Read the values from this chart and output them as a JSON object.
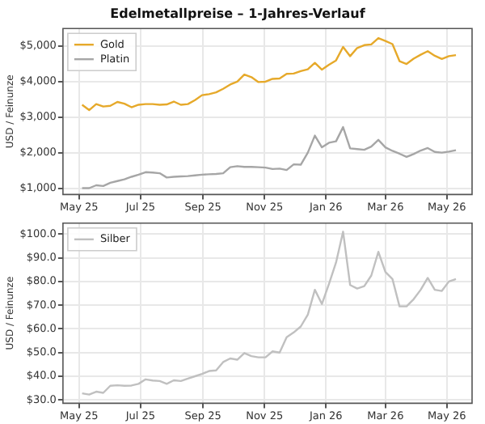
{
  "chart_data": [
    {
      "type": "line",
      "title": "Edelmetallpreise – 1-Jahres-Verlauf",
      "ylabel": "USD / Feinunze",
      "legend": "top left",
      "grid": true,
      "marker": "none",
      "line_style": "solid",
      "x": [
        "2025-05-04",
        "2025-05-11",
        "2025-05-18",
        "2025-05-25",
        "2025-06-01",
        "2025-06-08",
        "2025-06-15",
        "2025-06-22",
        "2025-06-29",
        "2025-07-06",
        "2025-07-13",
        "2025-07-20",
        "2025-07-27",
        "2025-08-03",
        "2025-08-10",
        "2025-08-17",
        "2025-08-24",
        "2025-08-31",
        "2025-09-07",
        "2025-09-14",
        "2025-09-21",
        "2025-09-28",
        "2025-10-05",
        "2025-10-12",
        "2025-10-19",
        "2025-10-26",
        "2025-11-02",
        "2025-11-09",
        "2025-11-16",
        "2025-11-23",
        "2025-11-30",
        "2025-12-07",
        "2025-12-14",
        "2025-12-21",
        "2025-12-28",
        "2026-01-04",
        "2026-01-11",
        "2026-01-18",
        "2026-01-25",
        "2026-02-01",
        "2026-02-08",
        "2026-02-15",
        "2026-02-22",
        "2026-03-01",
        "2026-03-08",
        "2026-03-15",
        "2026-03-22",
        "2026-03-29",
        "2026-04-05",
        "2026-04-12",
        "2026-04-19",
        "2026-04-26",
        "2026-05-03",
        "2026-05-10"
      ],
      "xlim": [
        "2025-04-15",
        "2026-05-26"
      ],
      "xticks": [
        {
          "value": "2025-05-01",
          "label": "May 25"
        },
        {
          "value": "2025-07-01",
          "label": "Jul 25"
        },
        {
          "value": "2025-09-01",
          "label": "Sep 25"
        },
        {
          "value": "2025-11-01",
          "label": "Nov 25"
        },
        {
          "value": "2026-01-01",
          "label": "Jan 26"
        },
        {
          "value": "2026-03-01",
          "label": "Mar 26"
        },
        {
          "value": "2026-05-01",
          "label": "May 26"
        }
      ],
      "ylim": [
        820,
        5500
      ],
      "yticks": [
        {
          "value": 1000,
          "label": "$1,000"
        },
        {
          "value": 2000,
          "label": "$2,000"
        },
        {
          "value": 3000,
          "label": "$3,000"
        },
        {
          "value": 4000,
          "label": "$4,000"
        },
        {
          "value": 5000,
          "label": "$5,000"
        }
      ],
      "series": [
        {
          "name": "Gold",
          "color": "#e6a92a",
          "values": [
            3350,
            3200,
            3370,
            3300,
            3320,
            3430,
            3380,
            3280,
            3350,
            3370,
            3370,
            3350,
            3360,
            3440,
            3350,
            3370,
            3480,
            3620,
            3650,
            3700,
            3800,
            3920,
            4000,
            4200,
            4130,
            3990,
            4000,
            4080,
            4090,
            4220,
            4230,
            4300,
            4350,
            4530,
            4340,
            4480,
            4600,
            4980,
            4720,
            4950,
            5030,
            5050,
            5230,
            5150,
            5060,
            4580,
            4500,
            4650,
            4760,
            4860,
            4730,
            4640,
            4720,
            4750
          ]
        },
        {
          "name": "Platin",
          "color": "#a6a6a6",
          "values": [
            1000,
            1000,
            1080,
            1060,
            1150,
            1200,
            1250,
            1320,
            1380,
            1450,
            1440,
            1420,
            1300,
            1320,
            1330,
            1340,
            1360,
            1380,
            1390,
            1400,
            1420,
            1590,
            1620,
            1600,
            1600,
            1590,
            1580,
            1540,
            1550,
            1510,
            1670,
            1660,
            2000,
            2480,
            2150,
            2280,
            2320,
            2720,
            2120,
            2100,
            2080,
            2170,
            2360,
            2150,
            2050,
            1970,
            1880,
            1960,
            2060,
            2130,
            2020,
            2000,
            2030,
            2070
          ]
        }
      ]
    },
    {
      "type": "line",
      "ylabel": "USD / Feinunze",
      "legend": "top left",
      "grid": true,
      "marker": "none",
      "line_style": "solid",
      "x": [
        "2025-05-04",
        "2025-05-11",
        "2025-05-18",
        "2025-05-25",
        "2025-06-01",
        "2025-06-08",
        "2025-06-15",
        "2025-06-22",
        "2025-06-29",
        "2025-07-06",
        "2025-07-13",
        "2025-07-20",
        "2025-07-27",
        "2025-08-03",
        "2025-08-10",
        "2025-08-17",
        "2025-08-24",
        "2025-08-31",
        "2025-09-07",
        "2025-09-14",
        "2025-09-21",
        "2025-09-28",
        "2025-10-05",
        "2025-10-12",
        "2025-10-19",
        "2025-10-26",
        "2025-11-02",
        "2025-11-09",
        "2025-11-16",
        "2025-11-23",
        "2025-11-30",
        "2025-12-07",
        "2025-12-14",
        "2025-12-21",
        "2025-12-28",
        "2026-01-04",
        "2026-01-11",
        "2026-01-18",
        "2026-01-25",
        "2026-02-01",
        "2026-02-08",
        "2026-02-15",
        "2026-02-22",
        "2026-03-01",
        "2026-03-08",
        "2026-03-15",
        "2026-03-22",
        "2026-03-29",
        "2026-04-05",
        "2026-04-12",
        "2026-04-19",
        "2026-04-26",
        "2026-05-03",
        "2026-05-10"
      ],
      "xlim": [
        "2025-04-15",
        "2026-05-26"
      ],
      "xticks": [
        {
          "value": "2025-05-01",
          "label": "May 25"
        },
        {
          "value": "2025-07-01",
          "label": "Jul 25"
        },
        {
          "value": "2025-09-01",
          "label": "Sep 25"
        },
        {
          "value": "2025-11-01",
          "label": "Nov 25"
        },
        {
          "value": "2026-01-01",
          "label": "Jan 26"
        },
        {
          "value": "2026-03-01",
          "label": "Mar 26"
        },
        {
          "value": "2026-05-01",
          "label": "May 26"
        }
      ],
      "ylim": [
        28.6,
        104.6
      ],
      "yticks": [
        {
          "value": 30,
          "label": "$30.0"
        },
        {
          "value": 40,
          "label": "$40.0"
        },
        {
          "value": 50,
          "label": "$50.0"
        },
        {
          "value": 60,
          "label": "$60.0"
        },
        {
          "value": 70,
          "label": "$70.0"
        },
        {
          "value": 80,
          "label": "$80.0"
        },
        {
          "value": 90,
          "label": "$90.0"
        },
        {
          "value": 100,
          "label": "$100.0"
        }
      ],
      "series": [
        {
          "name": "Silber",
          "color": "#c0c0c0",
          "values": [
            32.8,
            32.3,
            33.5,
            33.0,
            36.0,
            36.2,
            36.0,
            36.1,
            36.8,
            38.7,
            38.2,
            38.0,
            36.8,
            38.3,
            38.0,
            39.0,
            40.0,
            41.0,
            42.2,
            42.5,
            46.0,
            47.5,
            47.0,
            49.8,
            48.5,
            48.0,
            48.0,
            50.5,
            50.0,
            56.5,
            58.5,
            61.0,
            66.0,
            76.5,
            70.5,
            79.0,
            88.0,
            101.0,
            78.5,
            77.0,
            78.0,
            82.5,
            92.5,
            84.0,
            81.0,
            69.5,
            69.5,
            72.5,
            76.5,
            81.5,
            76.5,
            76.0,
            80.0,
            81.0
          ]
        }
      ]
    }
  ]
}
